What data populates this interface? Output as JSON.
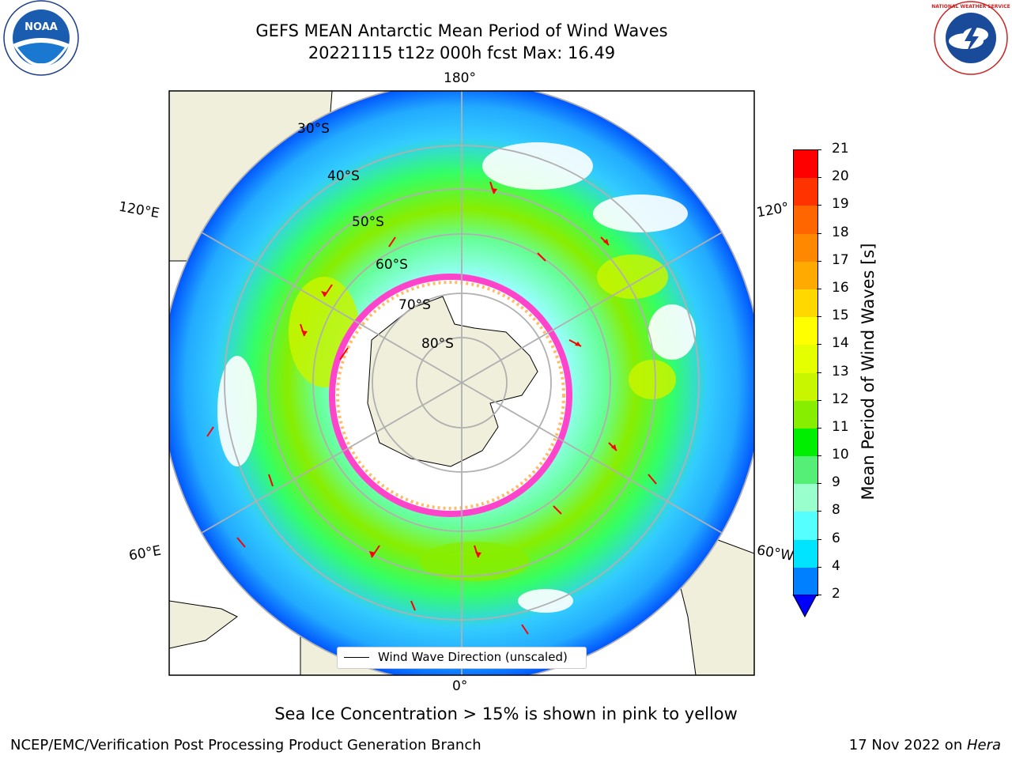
{
  "header": {
    "title_line1": "GEFS MEAN Antarctic Mean Period of Wind Waves",
    "title_line2": "20221115 t12z 000h fcst   Max: 16.49"
  },
  "logos": {
    "noaa_text": "NOAA",
    "nws_text": "NATIONAL WEATHER SERVICE"
  },
  "map": {
    "longitude_labels": {
      "top": "180°",
      "bottom": "0°",
      "left_upper": "120°E",
      "left_lower": "60°E",
      "right_upper": "120°",
      "right_lower": "60°W"
    },
    "latitude_labels": [
      "30°S",
      "40°S",
      "50°S",
      "60°S",
      "70°S",
      "80°S"
    ],
    "legend": "Wind Wave Direction (unscaled)"
  },
  "colorbar": {
    "label": "Mean Period of Wind Waves [s]",
    "ticks": [
      "21",
      "20",
      "19",
      "18",
      "17",
      "16",
      "15",
      "14",
      "13",
      "12",
      "11",
      "10",
      "9",
      "8",
      "6",
      "4",
      "2"
    ],
    "colors": [
      "#ff0000",
      "#ff3300",
      "#ff6600",
      "#ff8800",
      "#ffaa00",
      "#ffd800",
      "#ffff00",
      "#e6ff00",
      "#c8f500",
      "#88ee00",
      "#00ee00",
      "#55ee77",
      "#99ffcc",
      "#55ffff",
      "#00e4ff",
      "#0080ff"
    ],
    "extend_color": "#0000ff"
  },
  "footer": {
    "note": "Sea Ice Concentration > 15% is shown in pink to yellow",
    "credit": "NCEP/EMC/Verification Post Processing Product Generation Branch",
    "date": "17 Nov 2022 on ",
    "machine": "Hera"
  }
}
